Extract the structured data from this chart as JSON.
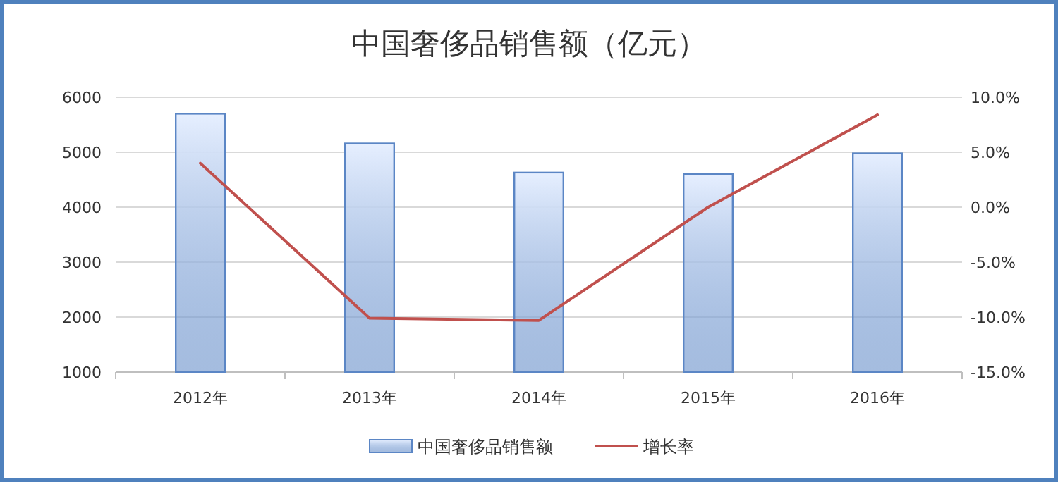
{
  "chart_data": {
    "type": "bar",
    "title": "中国奢侈品销售额（亿元）",
    "categories": [
      "2012年",
      "2013年",
      "2014年",
      "2015年",
      "2016年"
    ],
    "series": [
      {
        "name": "中国奢侈品销售额",
        "color": "#5b86c5",
        "values": [
          5700,
          5160,
          4630,
          4600,
          4980
        ]
      },
      {
        "name": "增长率",
        "type": "line",
        "axis": "y2",
        "color": "#c0504d",
        "values": [
          4.0,
          -10.1,
          -10.3,
          0.0,
          8.4
        ]
      }
    ],
    "ylim": [
      1000,
      6000
    ],
    "yticks": [
      1000,
      2000,
      3000,
      4000,
      5000,
      6000
    ],
    "y2lim": [
      -15,
      10
    ],
    "y2ticks": [
      {
        "value": -15,
        "label": "-15.0%"
      },
      {
        "value": -10,
        "label": "-10.0%"
      },
      {
        "value": -5,
        "label": "-5.0%"
      },
      {
        "value": 0,
        "label": "0.0%"
      },
      {
        "value": 5,
        "label": "5.0%"
      },
      {
        "value": 10,
        "label": "10.0%"
      }
    ],
    "grid": "y",
    "legend": "bottom",
    "marker": "none",
    "line_style": "solid"
  }
}
